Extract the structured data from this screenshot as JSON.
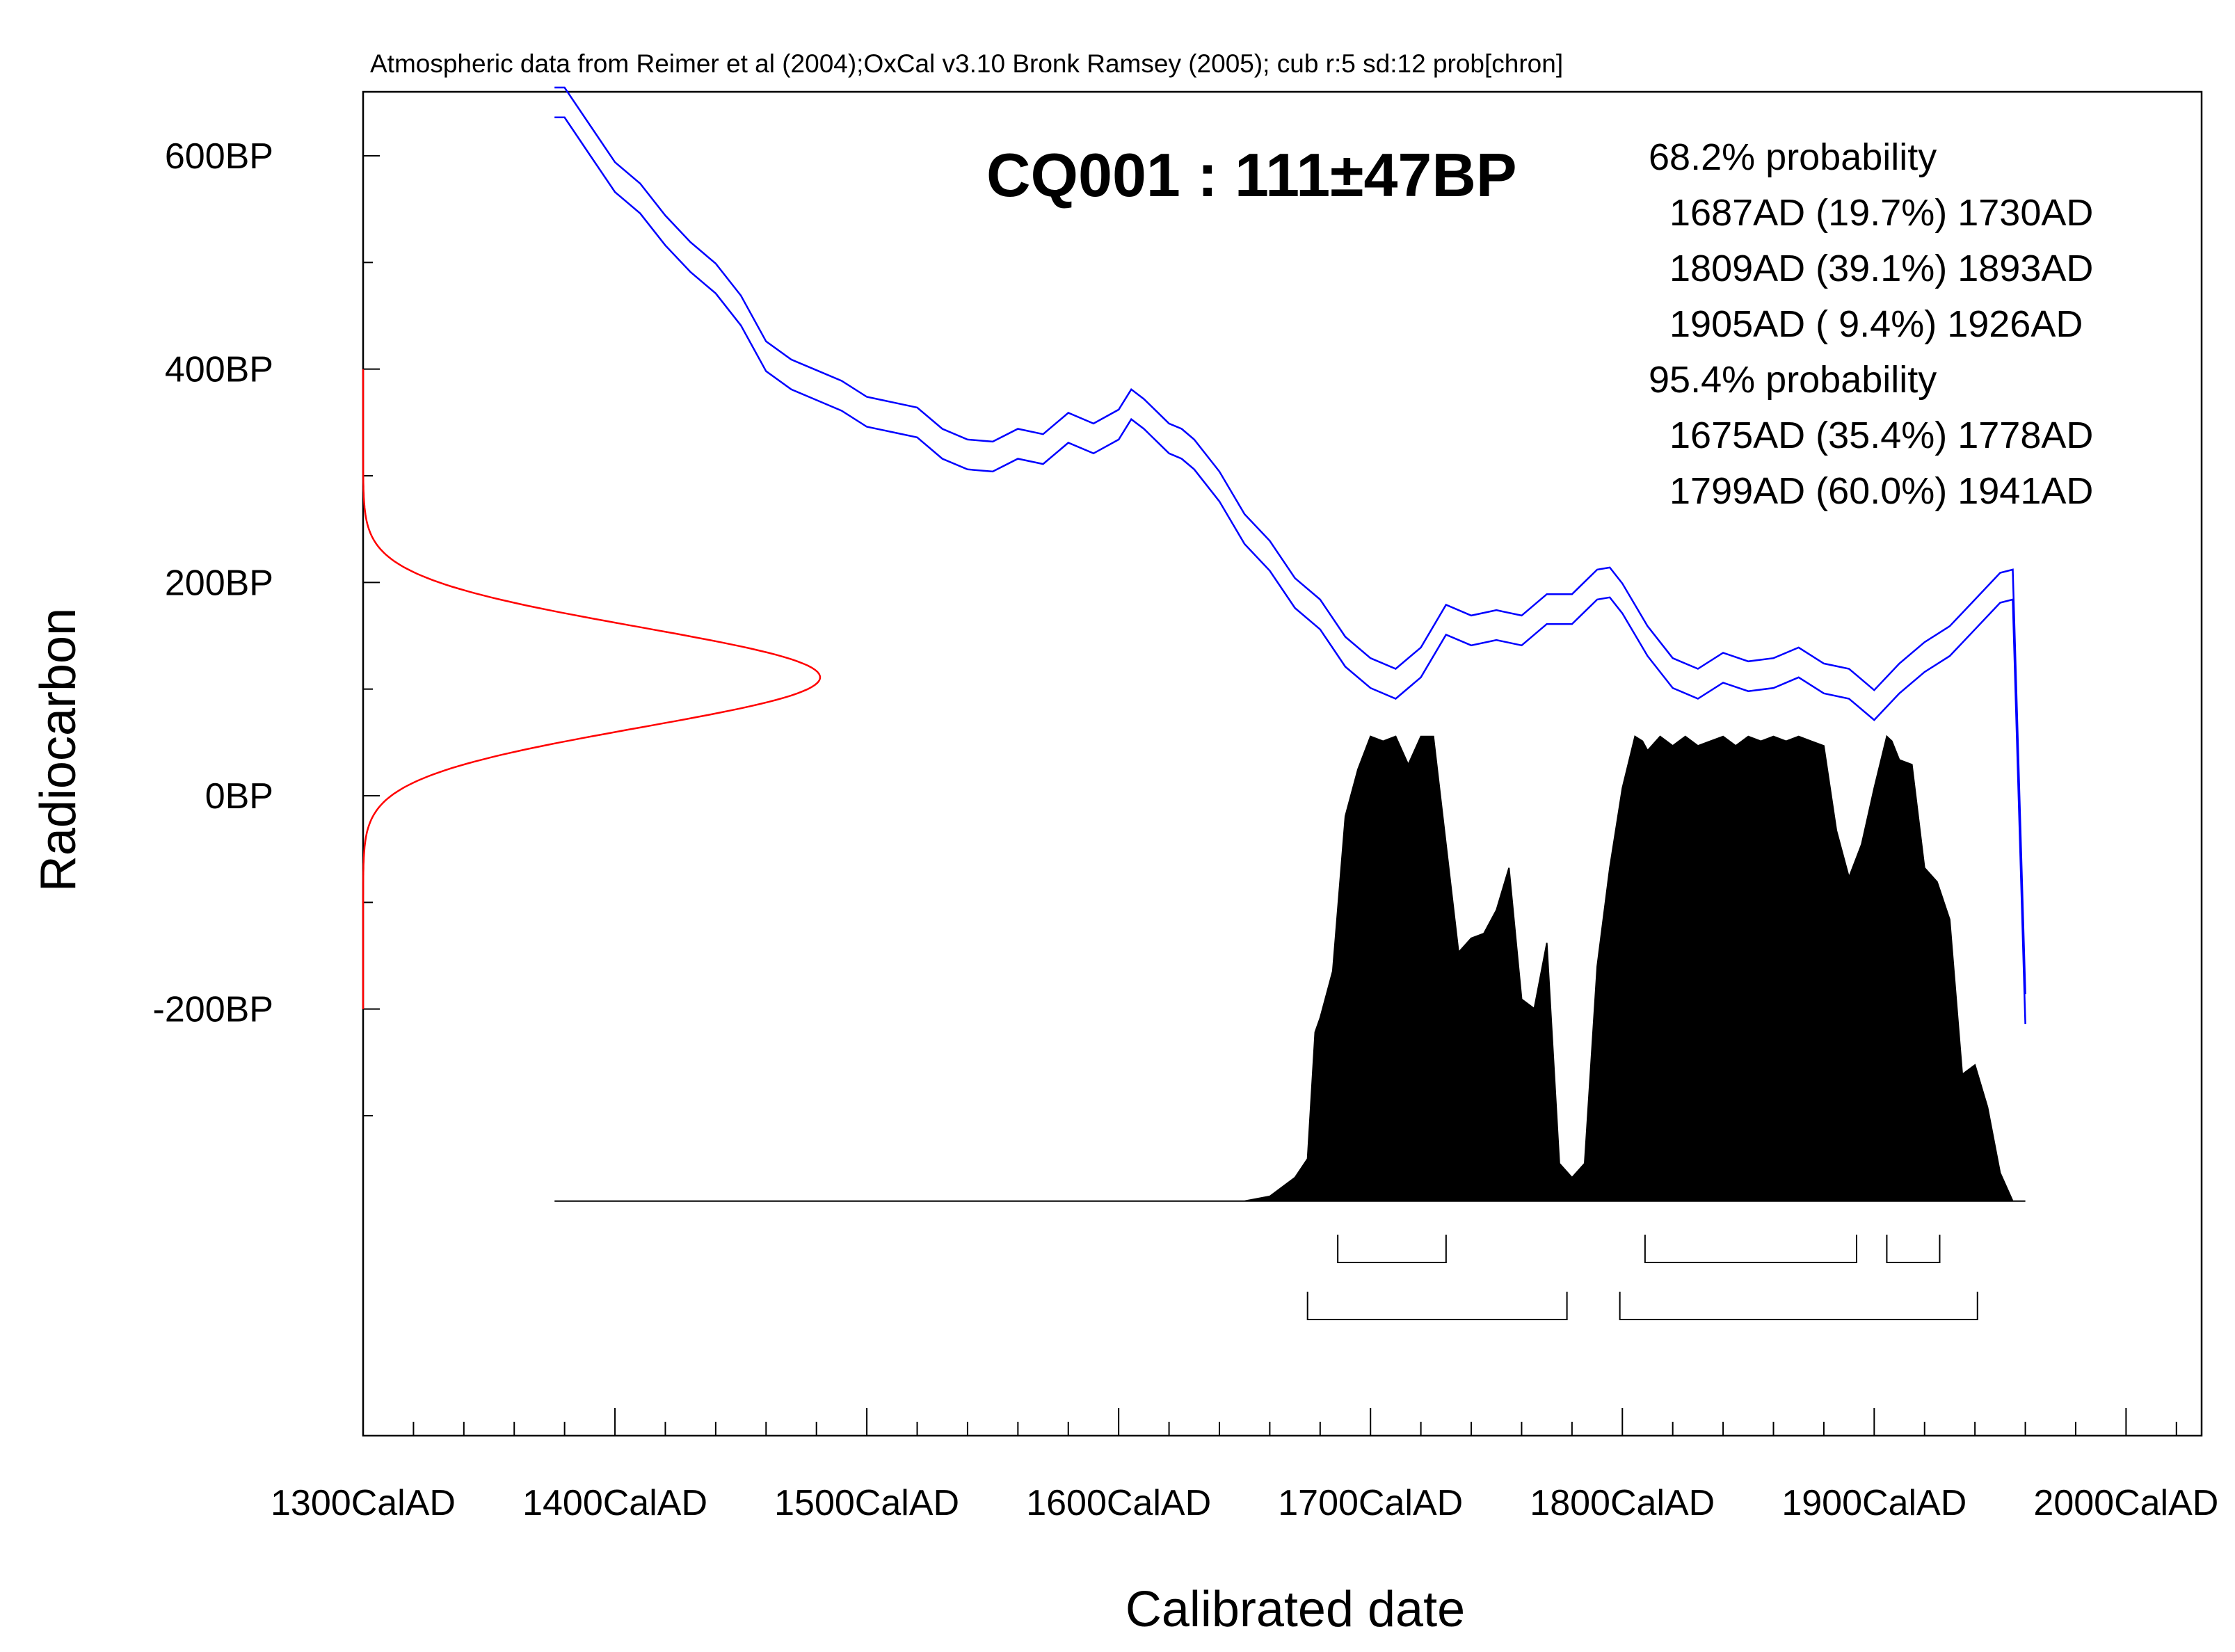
{
  "header_text": "Atmospheric data from Reimer et al (2004);OxCal v3.10 Bronk Ramsey (2005); cub r:5 sd:12 prob[chron]",
  "chart_data": {
    "type": "area",
    "title": "CQ001 : 111±47BP",
    "xlabel": "Calibrated date",
    "ylabel": "Radiocarbon",
    "x_range": [
      1300,
      2030
    ],
    "y_range": [
      -600,
      660
    ],
    "x_ticks": [
      {
        "value": 1300,
        "label": "1300CalAD"
      },
      {
        "value": 1400,
        "label": "1400CalAD"
      },
      {
        "value": 1500,
        "label": "1500CalAD"
      },
      {
        "value": 1600,
        "label": "1600CalAD"
      },
      {
        "value": 1700,
        "label": "1700CalAD"
      },
      {
        "value": 1800,
        "label": "1800CalAD"
      },
      {
        "value": 1900,
        "label": "1900CalAD"
      },
      {
        "value": 2000,
        "label": "2000CalAD"
      }
    ],
    "x_minor_step": 20,
    "y_ticks": [
      {
        "value": 600,
        "label": "600BP"
      },
      {
        "value": 400,
        "label": "400BP"
      },
      {
        "value": 200,
        "label": "200BP"
      },
      {
        "value": 0,
        "label": "0BP"
      },
      {
        "value": -200,
        "label": "-200BP"
      }
    ],
    "y_minor_step": 100,
    "radiocarbon_measurement": {
      "mean": 111,
      "sd": 47,
      "color": "#ff0000"
    },
    "calibration_curve": {
      "color": "#0000ff",
      "band_half_width": 14,
      "x": [
        1376,
        1380,
        1390,
        1400,
        1410,
        1420,
        1430,
        1440,
        1450,
        1460,
        1470,
        1480,
        1490,
        1500,
        1510,
        1520,
        1530,
        1540,
        1550,
        1560,
        1570,
        1580,
        1590,
        1600,
        1605,
        1610,
        1620,
        1625,
        1630,
        1640,
        1650,
        1660,
        1670,
        1680,
        1690,
        1700,
        1710,
        1720,
        1730,
        1740,
        1750,
        1760,
        1770,
        1780,
        1790,
        1795,
        1800,
        1810,
        1820,
        1830,
        1840,
        1850,
        1860,
        1870,
        1880,
        1890,
        1900,
        1910,
        1920,
        1930,
        1940,
        1950,
        1955,
        1960
      ],
      "y": [
        650,
        650,
        615,
        580,
        560,
        530,
        505,
        485,
        455,
        412,
        395,
        385,
        375,
        360,
        355,
        350,
        330,
        320,
        318,
        330,
        325,
        345,
        335,
        348,
        367,
        358,
        335,
        330,
        320,
        290,
        250,
        225,
        190,
        170,
        135,
        115,
        105,
        125,
        165,
        155,
        160,
        155,
        175,
        175,
        198,
        200,
        185,
        145,
        115,
        105,
        120,
        112,
        115,
        125,
        110,
        105,
        85,
        110,
        130,
        145,
        170,
        195,
        198,
        -200
      ]
    },
    "distribution": {
      "color": "#000000",
      "x": [
        1376,
        1650,
        1660,
        1665,
        1670,
        1675,
        1678,
        1680,
        1685,
        1690,
        1695,
        1700,
        1705,
        1710,
        1715,
        1720,
        1725,
        1730,
        1735,
        1740,
        1745,
        1750,
        1755,
        1760,
        1765,
        1770,
        1775,
        1780,
        1785,
        1790,
        1795,
        1800,
        1805,
        1808,
        1810,
        1815,
        1820,
        1825,
        1830,
        1835,
        1840,
        1845,
        1850,
        1855,
        1860,
        1865,
        1870,
        1875,
        1880,
        1885,
        1890,
        1895,
        1900,
        1905,
        1907,
        1910,
        1915,
        1920,
        1925,
        1930,
        1935,
        1940,
        1945,
        1950,
        1955,
        1960
      ],
      "p": [
        0,
        0,
        0.01,
        0.03,
        0.05,
        0.09,
        0.36,
        0.39,
        0.49,
        0.82,
        0.92,
        0.99,
        0.98,
        0.99,
        0.93,
        0.99,
        0.99,
        0.76,
        0.53,
        0.56,
        0.57,
        0.62,
        0.71,
        0.43,
        0.41,
        0.55,
        0.08,
        0.05,
        0.08,
        0.5,
        0.71,
        0.88,
        0.99,
        0.98,
        0.96,
        0.99,
        0.97,
        0.99,
        0.97,
        0.98,
        0.99,
        0.97,
        0.99,
        0.98,
        0.99,
        0.98,
        0.99,
        0.98,
        0.97,
        0.79,
        0.69,
        0.76,
        0.88,
        0.99,
        0.98,
        0.94,
        0.93,
        0.71,
        0.68,
        0.6,
        0.27,
        0.29,
        0.2,
        0.06,
        0.0,
        0.0
      ]
    },
    "ranges_68_2": [
      [
        1687,
        1730
      ],
      [
        1809,
        1893
      ],
      [
        1905,
        1926
      ]
    ],
    "ranges_95_4": [
      [
        1675,
        1778
      ],
      [
        1799,
        1941
      ]
    ],
    "stats_text": [
      "68.2% probability",
      "  1687AD (19.7%) 1730AD",
      "  1809AD (39.1%) 1893AD",
      "  1905AD ( 9.4%) 1926AD",
      "95.4% probability",
      "  1675AD (35.4%) 1778AD",
      "  1799AD (60.0%) 1941AD"
    ],
    "grid": false,
    "legend": "none"
  }
}
